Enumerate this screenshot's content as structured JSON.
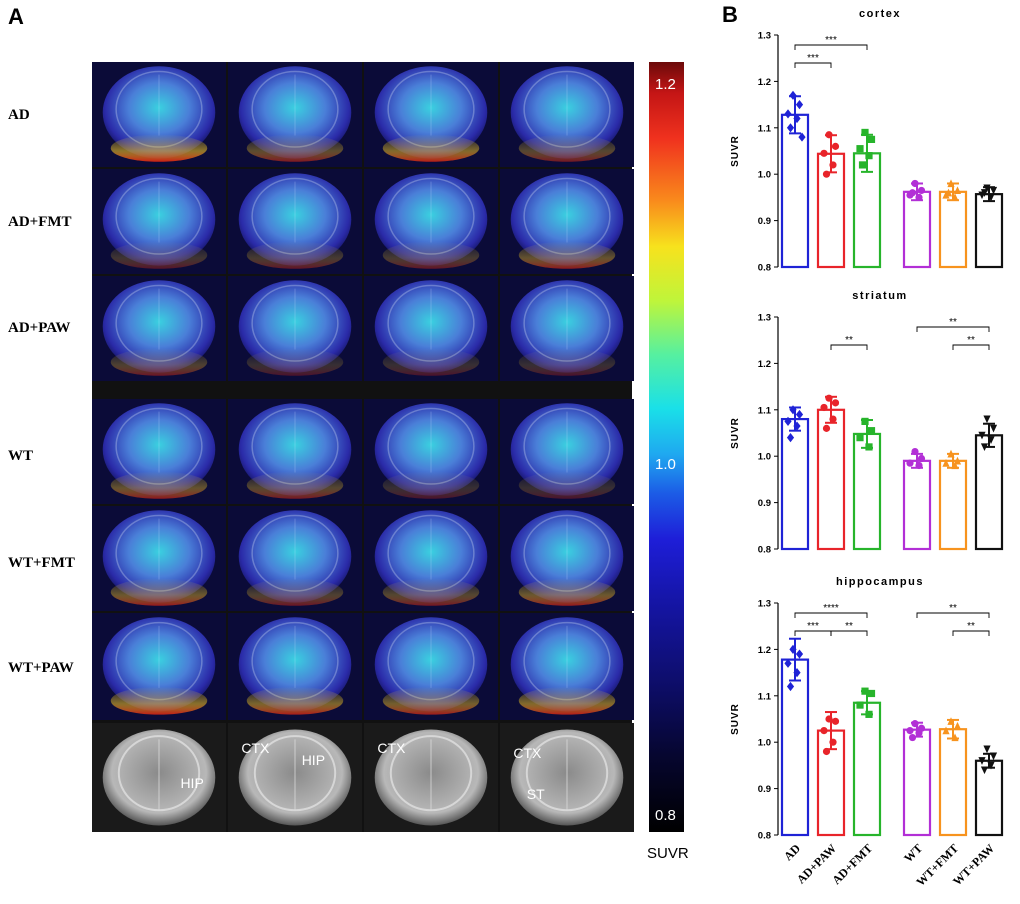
{
  "panel_a": {
    "letter": "A",
    "rows": [
      "AD",
      "AD+FMT",
      "AD+PAW",
      "WT",
      "WT+FMT",
      "WT+PAW"
    ],
    "mri_regions": [
      [
        "HIP"
      ],
      [
        "CTX",
        "HIP"
      ],
      [
        "CTX"
      ],
      [
        "CTX",
        "ST"
      ]
    ],
    "colorbar": {
      "max_label": "1.2",
      "mid_label": "1.0",
      "min_label": "0.8",
      "title": "SUVR"
    }
  },
  "panel_b": {
    "letter": "B"
  },
  "chart_data": [
    {
      "type": "bar",
      "title": "cortex",
      "ylabel": "SUVR",
      "ylim": [
        0.8,
        1.3
      ],
      "yticks": [
        "0.8",
        "0.9",
        "1.0",
        "1.1",
        "1.2",
        "1.3"
      ],
      "categories": [
        "AD",
        "AD+PAW",
        "AD+FMT",
        "WT",
        "WT+FMT",
        "WT+PAW"
      ],
      "colors": [
        "#1f23d6",
        "#e8242a",
        "#27b42b",
        "#b22fd6",
        "#f7931e",
        "#111111"
      ],
      "markers": [
        "diamond",
        "circle",
        "square",
        "circle",
        "triangle",
        "triangle-down"
      ],
      "values": [
        1.128,
        1.044,
        1.045,
        0.962,
        0.962,
        0.957
      ],
      "errors": [
        0.04,
        0.04,
        0.04,
        0.018,
        0.018,
        0.015
      ],
      "points": [
        [
          1.17,
          1.15,
          1.13,
          1.12,
          1.1,
          1.08
        ],
        [
          1.085,
          1.06,
          1.045,
          1.02,
          1.0
        ],
        [
          1.09,
          1.075,
          1.055,
          1.04,
          1.02
        ],
        [
          0.98,
          0.965,
          0.955,
          0.95,
          0.96
        ],
        [
          0.98,
          0.965,
          0.955,
          0.95,
          0.96
        ],
        [
          0.97,
          0.965,
          0.955,
          0.95,
          0.96
        ]
      ],
      "significance": [
        {
          "from": 0,
          "to": 1,
          "label": "***",
          "level": 1
        },
        {
          "from": 0,
          "to": 2,
          "label": "***",
          "level": 2
        }
      ]
    },
    {
      "type": "bar",
      "title": "striatum",
      "ylabel": "SUVR",
      "ylim": [
        0.8,
        1.3
      ],
      "yticks": [
        "0.8",
        "0.9",
        "1.0",
        "1.1",
        "1.2",
        "1.3"
      ],
      "categories": [
        "AD",
        "AD+PAW",
        "AD+FMT",
        "WT",
        "WT+FMT",
        "WT+PAW"
      ],
      "colors": [
        "#1f23d6",
        "#e8242a",
        "#27b42b",
        "#b22fd6",
        "#f7931e",
        "#111111"
      ],
      "markers": [
        "diamond",
        "circle",
        "square",
        "circle",
        "triangle",
        "triangle-down"
      ],
      "values": [
        1.08,
        1.1,
        1.048,
        0.99,
        0.99,
        1.045
      ],
      "errors": [
        0.025,
        0.028,
        0.03,
        0.015,
        0.015,
        0.025
      ],
      "points": [
        [
          1.1,
          1.09,
          1.075,
          1.065,
          1.04
        ],
        [
          1.125,
          1.115,
          1.105,
          1.08,
          1.06
        ],
        [
          1.075,
          1.055,
          1.04,
          1.02
        ],
        [
          1.01,
          0.995,
          0.985,
          0.98
        ],
        [
          1.005,
          0.99,
          0.985,
          0.98
        ],
        [
          1.08,
          1.06,
          1.045,
          1.035,
          1.02
        ]
      ],
      "significance": [
        {
          "from": 1,
          "to": 2,
          "label": "**",
          "level": 1
        },
        {
          "from": 3,
          "to": 5,
          "label": "**",
          "level": 2
        },
        {
          "from": 4,
          "to": 5,
          "label": "**",
          "level": 1
        }
      ]
    },
    {
      "type": "bar",
      "title": "hippocampus",
      "ylabel": "SUVR",
      "ylim": [
        0.8,
        1.3
      ],
      "yticks": [
        "0.8",
        "0.9",
        "1.0",
        "1.1",
        "1.2",
        "1.3"
      ],
      "categories": [
        "AD",
        "AD+PAW",
        "AD+FMT",
        "WT",
        "WT+FMT",
        "WT+PAW"
      ],
      "colors": [
        "#1f23d6",
        "#e8242a",
        "#27b42b",
        "#b22fd6",
        "#f7931e",
        "#111111"
      ],
      "markers": [
        "diamond",
        "circle",
        "square",
        "circle",
        "triangle",
        "triangle-down"
      ],
      "values": [
        1.178,
        1.025,
        1.085,
        1.027,
        1.028,
        0.96
      ],
      "errors": [
        0.045,
        0.04,
        0.025,
        0.015,
        0.02,
        0.015
      ],
      "points": [
        [
          1.2,
          1.19,
          1.17,
          1.15,
          1.12
        ],
        [
          1.05,
          1.045,
          1.025,
          1.0,
          0.98
        ],
        [
          1.11,
          1.105,
          1.08,
          1.06
        ],
        [
          1.04,
          1.03,
          1.025,
          1.02,
          1.01
        ],
        [
          1.045,
          1.035,
          1.025,
          1.01
        ],
        [
          0.985,
          0.97,
          0.96,
          0.95,
          0.94
        ]
      ],
      "significance": [
        {
          "from": 0,
          "to": 1,
          "label": "***",
          "level": 1
        },
        {
          "from": 0,
          "to": 2,
          "label": "****",
          "level": 2
        },
        {
          "from": 1,
          "to": 2,
          "label": "**",
          "level": 1
        },
        {
          "from": 3,
          "to": 5,
          "label": "**",
          "level": 2
        },
        {
          "from": 4,
          "to": 5,
          "label": "**",
          "level": 1
        }
      ]
    }
  ]
}
